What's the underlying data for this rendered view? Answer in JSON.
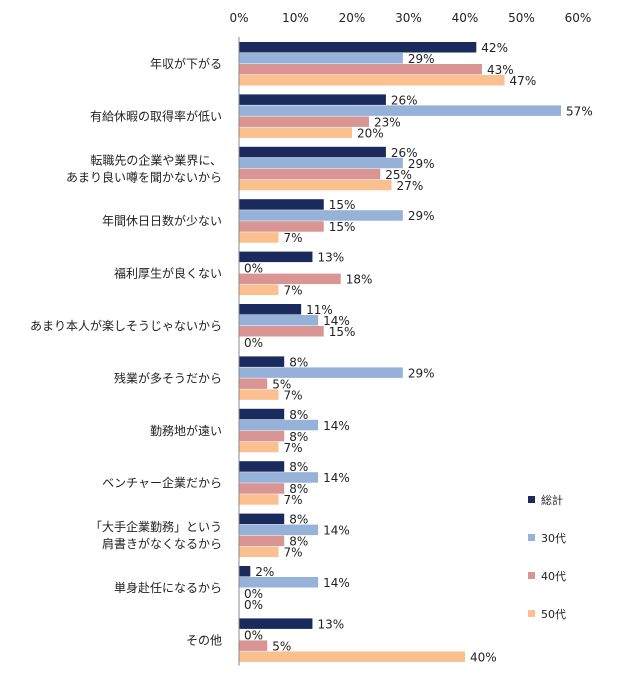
{
  "chart_data": {
    "type": "bar",
    "orientation": "horizontal",
    "title": "",
    "xlabel": "",
    "ylabel": "",
    "xlim": [
      0,
      60
    ],
    "x_ticks": [
      "0%",
      "10%",
      "20%",
      "30%",
      "40%",
      "50%",
      "60%"
    ],
    "x_tick_values": [
      0,
      10,
      20,
      30,
      40,
      50,
      60
    ],
    "x_axis_position": "top",
    "grid": false,
    "legend_position": "right",
    "value_suffix": "%",
    "categories": [
      [
        "年収が下がる"
      ],
      [
        "有給休暇の取得率が低い"
      ],
      [
        "転職先の企業や業界に、",
        "あまり良い噂を聞かないから"
      ],
      [
        "年間休日日数が少ない"
      ],
      [
        "福利厚生が良くない"
      ],
      [
        "あまり本人が楽しそうじゃないから"
      ],
      [
        "残業が多そうだから"
      ],
      [
        "勤務地が遠い"
      ],
      [
        "ベンチャー企業だから"
      ],
      [
        "「大手企業勤務」という",
        "肩書きがなくなるから"
      ],
      [
        "単身赴任になるから"
      ],
      [
        "その他"
      ]
    ],
    "series": [
      {
        "name": "総計",
        "color": "#1b2a5c",
        "values": [
          42,
          26,
          26,
          15,
          13,
          11,
          8,
          8,
          8,
          8,
          2,
          13
        ]
      },
      {
        "name": "30代",
        "color": "#96b2d8",
        "values": [
          29,
          57,
          29,
          29,
          0,
          14,
          29,
          14,
          14,
          14,
          14,
          0
        ]
      },
      {
        "name": "40代",
        "color": "#d99594",
        "values": [
          43,
          23,
          25,
          15,
          18,
          15,
          5,
          8,
          8,
          8,
          0,
          5
        ]
      },
      {
        "name": "50代",
        "color": "#fac08f",
        "values": [
          47,
          20,
          27,
          7,
          7,
          0,
          7,
          7,
          7,
          7,
          0,
          40
        ]
      }
    ]
  }
}
